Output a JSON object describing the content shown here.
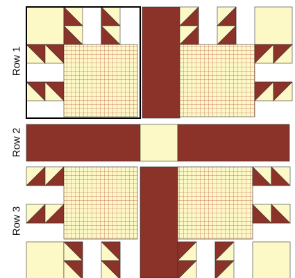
{
  "rows": [
    {
      "label": "Row 1"
    },
    {
      "label": "Row 2"
    },
    {
      "label": "Row 3"
    }
  ],
  "colors": {
    "background_fabric": "#fdf9c7",
    "dark_fabric": "#8b3328",
    "grid_line": "#c0554a",
    "outline": "#333333",
    "selected_outline": "#000000"
  },
  "patterns": {
    "block": "bear-paw",
    "center_panel": "checked-grid",
    "sashing": "cornerstone"
  }
}
